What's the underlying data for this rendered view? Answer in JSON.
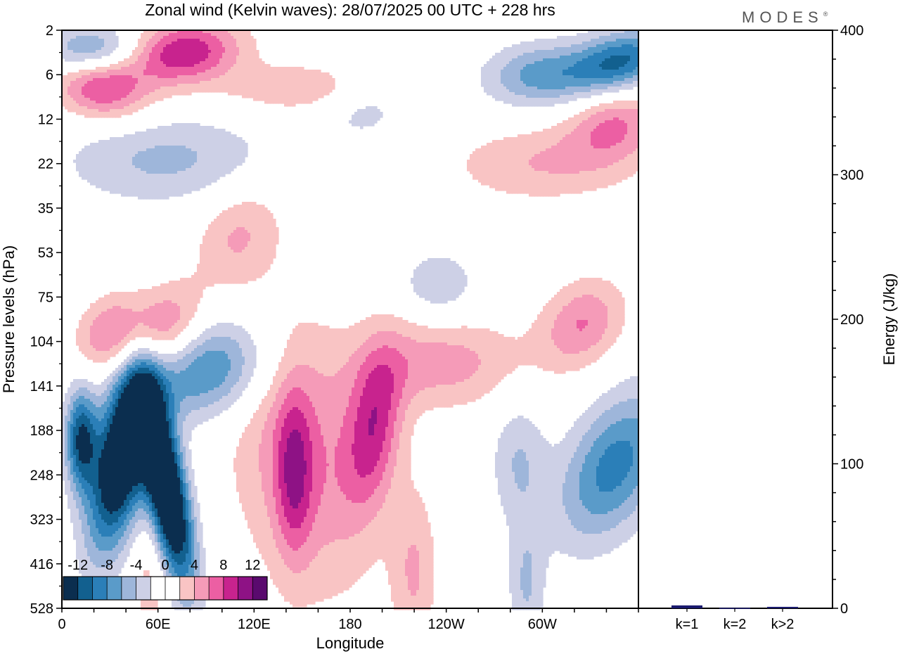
{
  "chart_data": {
    "type": "heatmap",
    "title": "Zonal wind (Kelvin waves):  28/07/2025  00 UTC  + 228 hrs",
    "brand": "MODES",
    "brand_mark": "®",
    "xlabel": "Longitude",
    "ylabel": "Pressure levels (hPa)",
    "x_ticks": [
      "0",
      "60E",
      "120E",
      "180",
      "120W",
      "60W"
    ],
    "x_tick_degrees": [
      0,
      60,
      120,
      180,
      240,
      300
    ],
    "xlim": [
      0,
      360
    ],
    "y_levels": [
      "2",
      "6",
      "12",
      "22",
      "35",
      "53",
      "75",
      "104",
      "141",
      "188",
      "248",
      "323",
      "416",
      "528"
    ],
    "colorbar": {
      "labels": [
        "-12",
        "-8",
        "-4",
        "0",
        "4",
        "8",
        "12"
      ],
      "levels": [
        -14,
        -12,
        -10,
        -8,
        -6,
        -4,
        -2,
        0,
        2,
        4,
        6,
        8,
        10,
        12,
        14
      ],
      "colors": [
        "#0b2e4f",
        "#12608f",
        "#2b7fb8",
        "#5a9bc9",
        "#9eb6da",
        "#cdd0e6",
        "#ffffff",
        "#ffffff",
        "#f9c4c4",
        "#f59bb8",
        "#ec5fa3",
        "#c8238e",
        "#8e1285",
        "#5a0a6e"
      ]
    },
    "features": [
      {
        "lon": 38,
        "lev": 9.5,
        "slon": 12,
        "slev": 1.5,
        "amp": -18,
        "tilt": 0.5
      },
      {
        "lon": 65,
        "lev": 10.3,
        "slon": 9,
        "slev": 1.5,
        "amp": -20,
        "tilt": -0.5
      },
      {
        "lon": 90,
        "lev": 7.6,
        "slon": 28,
        "slev": 0.8,
        "amp": -9,
        "tilt": 0.55
      },
      {
        "lon": 12,
        "lev": 9.2,
        "slon": 7,
        "slev": 0.8,
        "amp": -12,
        "tilt": 0
      },
      {
        "lon": 60,
        "lev": 6.8,
        "slon": 18,
        "slev": 0.7,
        "amp": 9,
        "tilt": 0.6
      },
      {
        "lon": 28,
        "lev": 6.8,
        "slon": 14,
        "slev": 0.6,
        "amp": 5,
        "tilt": 0.6
      },
      {
        "lon": 150,
        "lev": 9.5,
        "slon": 30,
        "slev": 2.2,
        "amp": 6,
        "tilt": -0.3
      },
      {
        "lon": 145,
        "lev": 10,
        "slon": 8,
        "slev": 1.3,
        "amp": 6,
        "tilt": 0
      },
      {
        "lon": 195,
        "lev": 8.9,
        "slon": 12,
        "slev": 1.3,
        "amp": 8,
        "tilt": 0.3
      },
      {
        "lon": 238,
        "lev": 7.5,
        "slon": 35,
        "slev": 0.7,
        "amp": 5,
        "tilt": 0.2
      },
      {
        "lon": 220,
        "lev": 12.2,
        "slon": 10,
        "slev": 1.3,
        "amp": 4,
        "tilt": 0
      },
      {
        "lon": 325,
        "lev": 6.6,
        "slon": 18,
        "slev": 0.7,
        "amp": 6,
        "tilt": 0.6
      },
      {
        "lon": 345,
        "lev": 9.8,
        "slon": 22,
        "slev": 1.2,
        "amp": -9,
        "tilt": 0.9
      },
      {
        "lon": 285,
        "lev": 9.7,
        "slon": 12,
        "slev": 1.0,
        "amp": -4,
        "tilt": 0
      },
      {
        "lon": 290,
        "lev": 12.5,
        "slon": 8,
        "slev": 1.0,
        "amp": -4,
        "tilt": 0
      },
      {
        "lon": 235,
        "lev": 5.7,
        "slon": 16,
        "slev": 0.5,
        "amp": -4,
        "tilt": 0
      },
      {
        "lon": 65,
        "lev": 2.9,
        "slon": 45,
        "slev": 0.7,
        "amp": -4.5,
        "tilt": 0.35
      },
      {
        "lon": 110,
        "lev": 4.6,
        "slon": 18,
        "slev": 0.8,
        "amp": 4,
        "tilt": 0.5
      },
      {
        "lon": 300,
        "lev": 3.0,
        "slon": 40,
        "slev": 0.6,
        "amp": 4,
        "tilt": 0.25
      },
      {
        "lon": 20,
        "lev": 0.45,
        "slon": 22,
        "slev": 0.4,
        "amp": -7,
        "tilt": 0
      },
      {
        "lon": 75,
        "lev": 0.5,
        "slon": 25,
        "slev": 0.5,
        "amp": 10,
        "tilt": 0.8
      },
      {
        "lon": 25,
        "lev": 1.3,
        "slon": 20,
        "slev": 0.5,
        "amp": 8,
        "tilt": -0.5
      },
      {
        "lon": 155,
        "lev": 1.3,
        "slon": 40,
        "slev": 0.4,
        "amp": 4,
        "tilt": 0.6
      },
      {
        "lon": 350,
        "lev": 0.7,
        "slon": 20,
        "slev": 0.5,
        "amp": -10,
        "tilt": 1.2
      },
      {
        "lon": 300,
        "lev": 1.0,
        "slon": 25,
        "slev": 0.5,
        "amp": -7,
        "tilt": 0.5
      },
      {
        "lon": 345,
        "lev": 2.1,
        "slon": 20,
        "slev": 0.6,
        "amp": 6,
        "tilt": 0.5
      },
      {
        "lon": 190,
        "lev": 1.6,
        "slon": 20,
        "slev": 0.6,
        "amp": -3.5,
        "tilt": 0.5
      },
      {
        "lon": 55,
        "lev": 12.5,
        "slon": 8,
        "slev": 1.2,
        "amp": 3,
        "tilt": 0
      }
    ],
    "energy_panel": {
      "ylabel": "Energy (J/kg)",
      "ylim": [
        0,
        400
      ],
      "y_ticks": [
        "0",
        "100",
        "200",
        "300",
        "400"
      ],
      "y_tick_values": [
        0,
        100,
        200,
        300,
        400
      ],
      "categories": [
        "k=1",
        "k=2",
        "k>2"
      ],
      "values": [
        2,
        0.3,
        1
      ],
      "bar_color": "#1a1a6e"
    }
  }
}
